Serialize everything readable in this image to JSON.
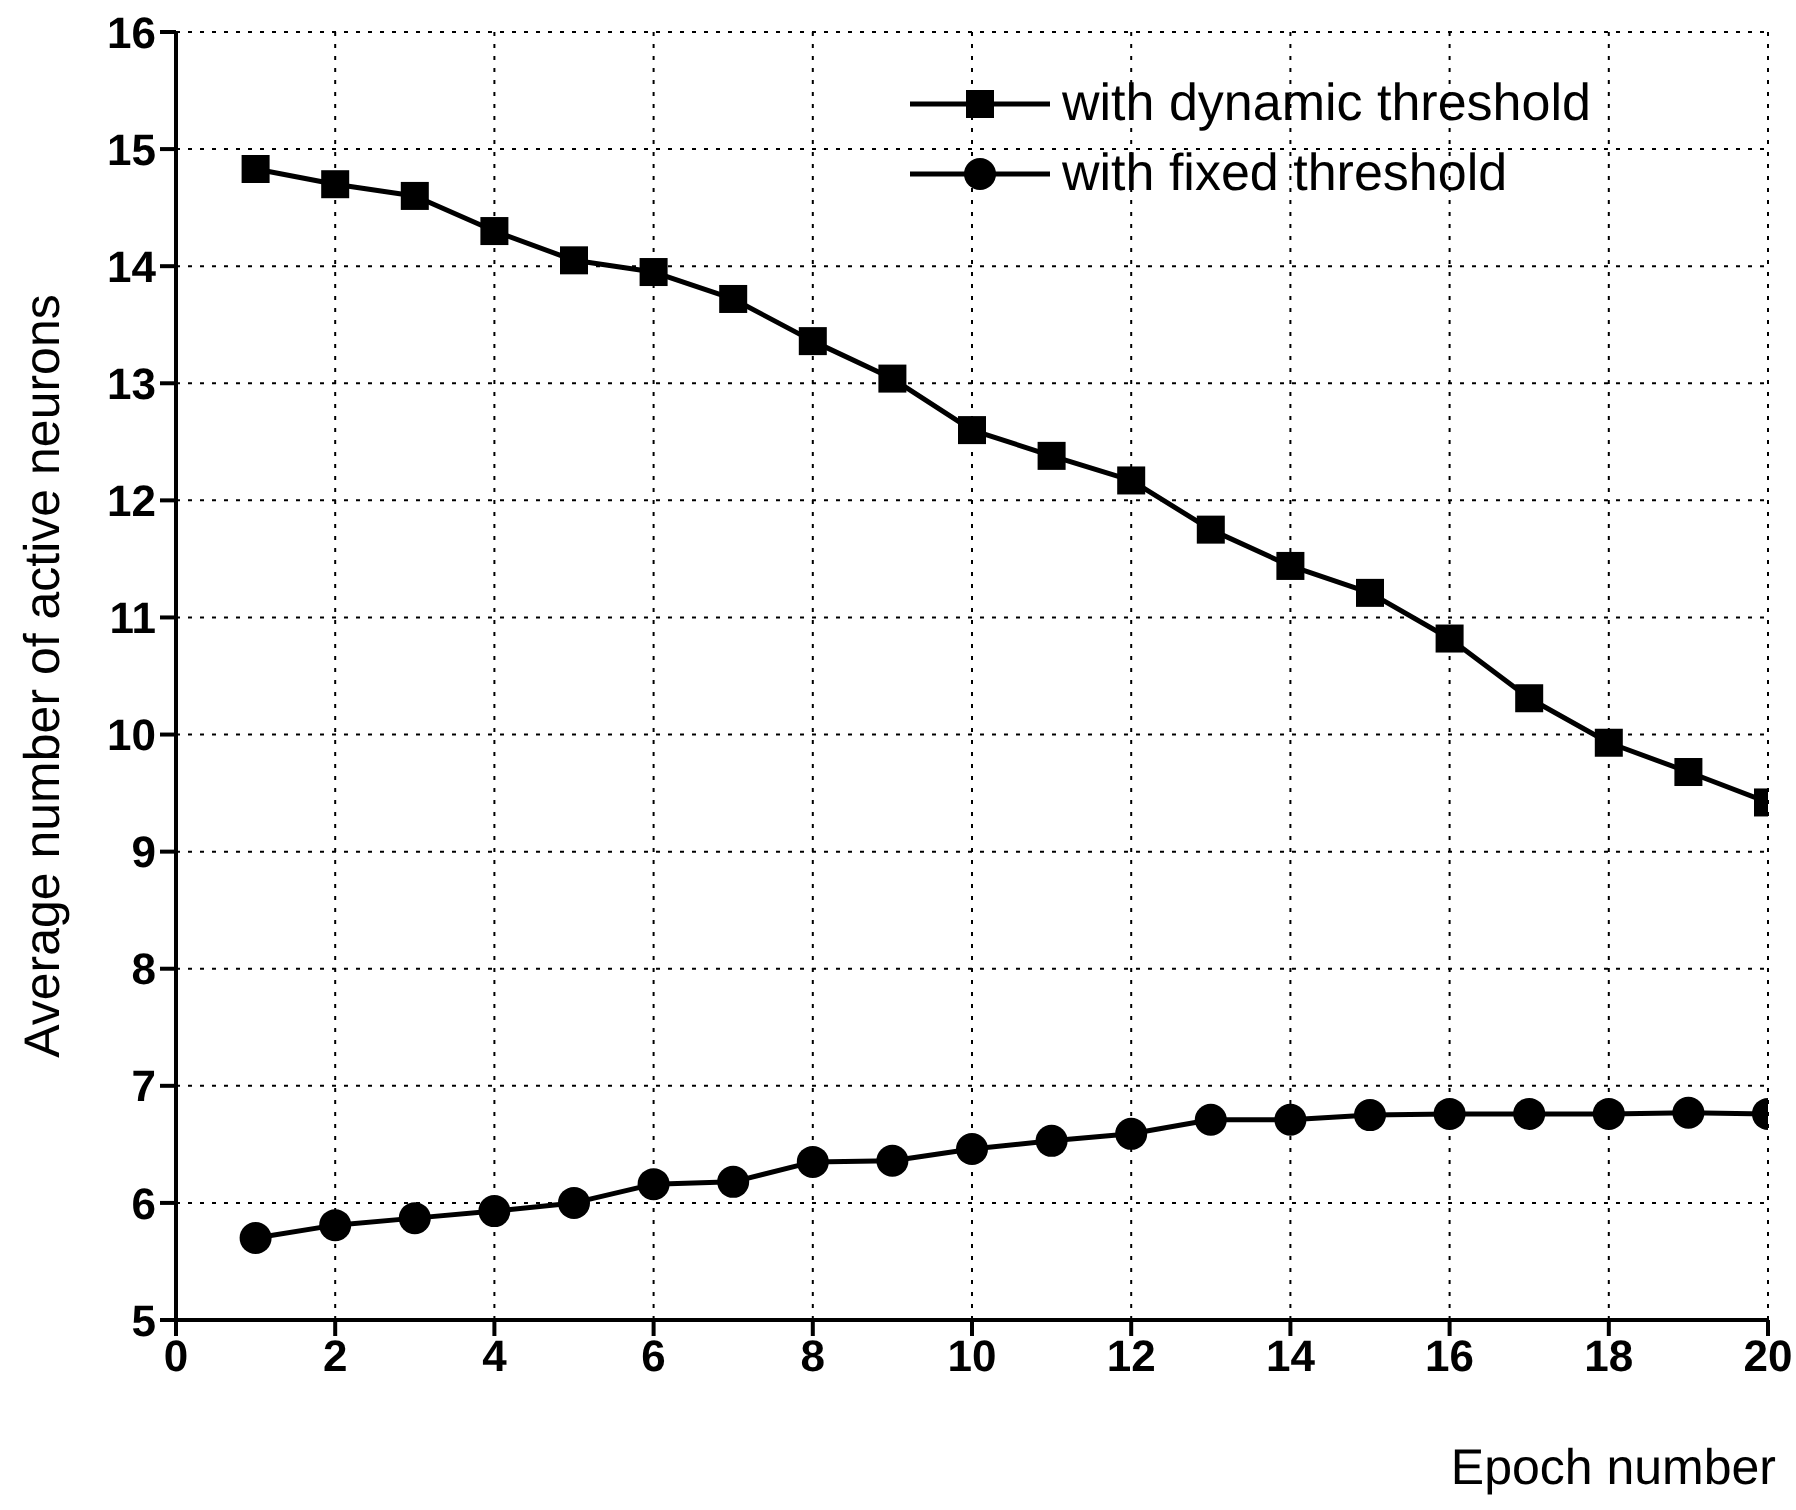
{
  "chart_data": {
    "type": "line",
    "xlabel": "Epoch number",
    "ylabel": "Average number of active neurons",
    "x": [
      1,
      2,
      3,
      4,
      5,
      6,
      7,
      8,
      9,
      10,
      11,
      12,
      13,
      14,
      15,
      16,
      17,
      18,
      19,
      20
    ],
    "series": [
      {
        "name": "with dynamic threshold",
        "color": "#000000",
        "marker": "square",
        "values": [
          14.83,
          14.7,
          14.6,
          14.3,
          14.05,
          13.95,
          13.72,
          13.36,
          13.04,
          12.6,
          12.38,
          12.17,
          11.75,
          11.44,
          11.21,
          10.82,
          10.31,
          9.93,
          9.68,
          9.42
        ]
      },
      {
        "name": "with fixed threshold",
        "color": "#000000",
        "marker": "circle",
        "values": [
          5.7,
          5.81,
          5.87,
          5.93,
          6.0,
          6.16,
          6.18,
          6.35,
          6.36,
          6.46,
          6.53,
          6.59,
          6.71,
          6.71,
          6.75,
          6.76,
          6.76,
          6.76,
          6.77,
          6.76
        ]
      }
    ],
    "xlim": [
      0,
      20
    ],
    "xticks": [
      0,
      2,
      4,
      6,
      8,
      10,
      12,
      14,
      16,
      18,
      20
    ],
    "ylim": [
      5,
      16
    ],
    "yticks": [
      5,
      6,
      7,
      8,
      9,
      10,
      11,
      12,
      13,
      14,
      15,
      16
    ],
    "grid": true,
    "legend": "top right",
    "line_style": "solid"
  }
}
